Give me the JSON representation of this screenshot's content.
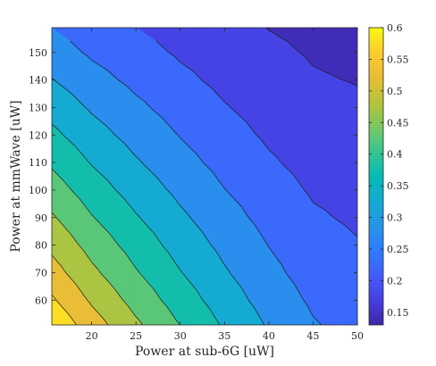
{
  "chart_data": {
    "type": "heatmap",
    "subtype": "filled-contour",
    "title": "",
    "xlabel": "Power at sub-6G [uW]",
    "ylabel": "Power at mmWave [uW]",
    "xlim": [
      15.5,
      50
    ],
    "ylim": [
      51,
      159
    ],
    "xticks": [
      20,
      25,
      30,
      35,
      40,
      45,
      50
    ],
    "yticks": [
      60,
      70,
      80,
      90,
      100,
      110,
      120,
      130,
      140,
      150
    ],
    "colorbar": {
      "label": "",
      "range": [
        0.13,
        0.6
      ],
      "ticks": [
        0.15,
        0.2,
        0.25,
        0.3,
        0.35,
        0.4,
        0.45,
        0.5,
        0.55,
        0.6
      ],
      "colormap": "parula",
      "position": "right"
    },
    "contour_levels": [
      0.15,
      0.2,
      0.25,
      0.3,
      0.35,
      0.4,
      0.45,
      0.5,
      0.55
    ],
    "x": [
      15.5,
      20,
      25,
      30,
      35,
      40,
      45,
      50
    ],
    "y": [
      51,
      60,
      70,
      80,
      90,
      100,
      110,
      120,
      130,
      140,
      150,
      159
    ],
    "z": [
      [
        0.592,
        0.524,
        0.459,
        0.399,
        0.344,
        0.295,
        0.254,
        0.232
      ],
      [
        0.557,
        0.493,
        0.432,
        0.376,
        0.325,
        0.279,
        0.242,
        0.222
      ],
      [
        0.521,
        0.461,
        0.404,
        0.352,
        0.305,
        0.263,
        0.229,
        0.212
      ],
      [
        0.488,
        0.432,
        0.379,
        0.33,
        0.287,
        0.249,
        0.218,
        0.203
      ],
      [
        0.456,
        0.403,
        0.354,
        0.309,
        0.269,
        0.234,
        0.206,
        0.193
      ],
      [
        0.424,
        0.375,
        0.329,
        0.288,
        0.251,
        0.22,
        0.195,
        0.184
      ],
      [
        0.393,
        0.347,
        0.305,
        0.267,
        0.234,
        0.206,
        0.184,
        0.175
      ],
      [
        0.362,
        0.32,
        0.282,
        0.248,
        0.218,
        0.193,
        0.174,
        0.166
      ],
      [
        0.332,
        0.294,
        0.26,
        0.229,
        0.203,
        0.181,
        0.164,
        0.157
      ],
      [
        0.302,
        0.268,
        0.238,
        0.211,
        0.188,
        0.169,
        0.154,
        0.148
      ],
      [
        0.273,
        0.243,
        0.217,
        0.194,
        0.175,
        0.159,
        0.146,
        0.14
      ],
      [
        0.25,
        0.223,
        0.2,
        0.18,
        0.163,
        0.149,
        0.138,
        0.133
      ]
    ],
    "grid": false,
    "legend": "none"
  }
}
